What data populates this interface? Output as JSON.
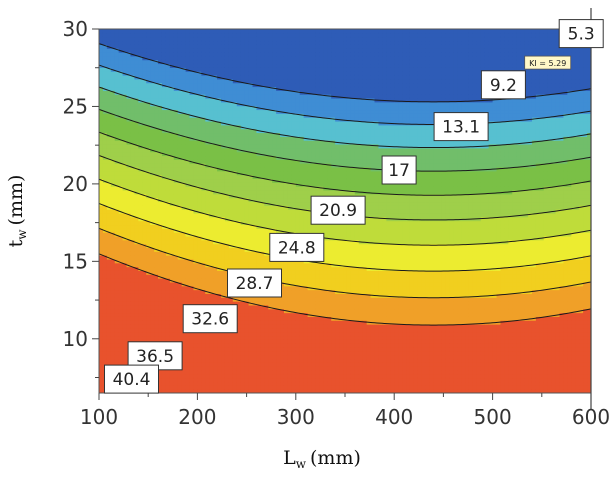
{
  "chart_data": {
    "type": "contour",
    "title": "",
    "xlabel": "L",
    "xlabel_sub": "w",
    "xlabel_unit": "(mm)",
    "ylabel": "t",
    "ylabel_sub": "w",
    "ylabel_unit": "(mm)",
    "xlim": [
      100,
      600
    ],
    "ylim": [
      6.5,
      30
    ],
    "x_ticks": [
      "100",
      "200",
      "300",
      "400",
      "500",
      "600"
    ],
    "y_ticks": [
      "10",
      "15",
      "20",
      "25",
      "30"
    ],
    "x_tick_values": [
      100,
      200,
      300,
      400,
      500,
      600
    ],
    "y_tick_values": [
      10,
      15,
      20,
      25,
      30
    ],
    "levels": [
      5.3,
      9.2,
      13.1,
      17,
      20.9,
      24.8,
      28.7,
      32.6,
      36.5,
      40.4
    ],
    "level_labels": [
      "5.3",
      "9.2",
      "13.1",
      "17",
      "20.9",
      "24.8",
      "28.7",
      "32.6",
      "36.5",
      "40.4"
    ],
    "band_colors": [
      "#e8522d",
      "#f0a028",
      "#f1cf1f",
      "#ecec30",
      "#bfdc3a",
      "#9fcf4a",
      "#7ac046",
      "#71be6a",
      "#57c0d0",
      "#3f8dd4",
      "#2e5cb7"
    ],
    "label_positions": [
      {
        "label": "5.3",
        "x": 590,
        "y": 29.7
      },
      {
        "label": "9.2",
        "x": 511,
        "y": 26.4
      },
      {
        "label": "13.1",
        "x": 468,
        "y": 23.7
      },
      {
        "label": "17",
        "x": 405,
        "y": 20.9
      },
      {
        "label": "20.9",
        "x": 343,
        "y": 18.3
      },
      {
        "label": "24.8",
        "x": 301,
        "y": 15.9
      },
      {
        "label": "28.7",
        "x": 258,
        "y": 13.6
      },
      {
        "label": "32.6",
        "x": 213,
        "y": 11.3
      },
      {
        "label": "36.5",
        "x": 157,
        "y": 8.9
      },
      {
        "label": "40.4",
        "x": 133,
        "y": 7.4
      }
    ],
    "annotation": {
      "text": "KI = 5.29",
      "x": 556,
      "y": 27.8
    },
    "grid": false,
    "legend": "none"
  }
}
